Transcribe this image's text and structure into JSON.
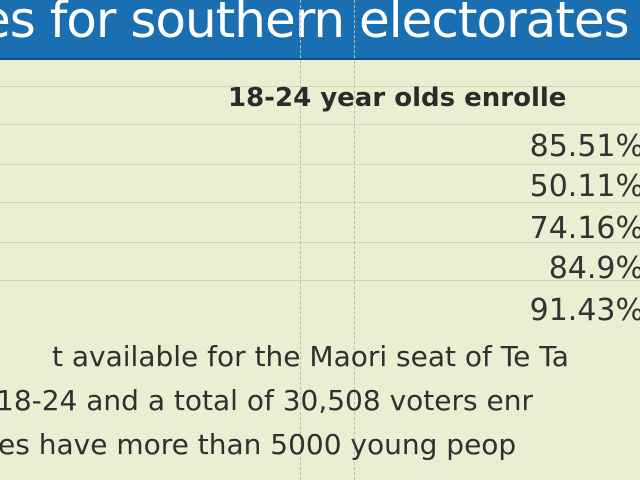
{
  "banner": {
    "title": "es for southern electorates a"
  },
  "table": {
    "column_header": "18-24 year olds enrolle",
    "values": [
      "85.51%",
      "50.11%",
      "74.16%",
      "84.9%",
      "91.43%"
    ]
  },
  "footnote": {
    "lines": [
      "t available for the Maori seat of Te Ta",
      "18-24 and a total of 30,508 voters enr",
      "es have more than 5000 young peop"
    ]
  }
}
